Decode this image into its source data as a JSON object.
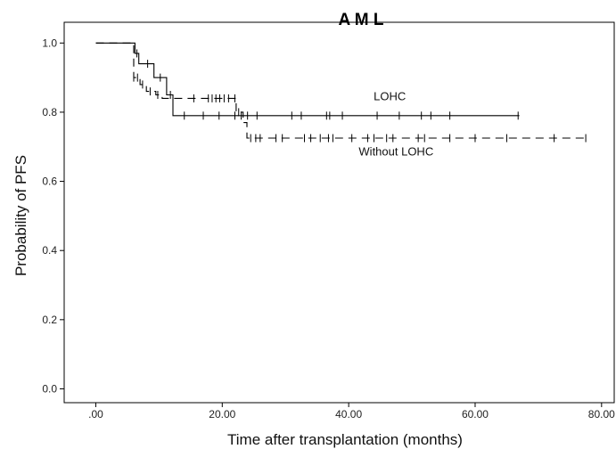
{
  "chart_data": {
    "type": "line",
    "title": "A M L",
    "xlabel": "Time after transplantation (months)",
    "ylabel": "Probability of PFS",
    "xlim": [
      -5,
      82
    ],
    "ylim": [
      -0.04,
      1.06
    ],
    "x_ticks": [
      {
        "value": 0,
        "label": ".00"
      },
      {
        "value": 20,
        "label": "20.00"
      },
      {
        "value": 40,
        "label": "40.00"
      },
      {
        "value": 60,
        "label": "60.00"
      },
      {
        "value": 80,
        "label": "80.00"
      }
    ],
    "y_ticks": [
      {
        "value": 0,
        "label": "0.0"
      },
      {
        "value": 0.2,
        "label": "0.2"
      },
      {
        "value": 0.4,
        "label": "0.4"
      },
      {
        "value": 0.6,
        "label": "0.6"
      },
      {
        "value": 0.8,
        "label": "0.8"
      },
      {
        "value": 1.0,
        "label": "1.0"
      }
    ],
    "grid": false,
    "series": [
      {
        "name": "LOHC",
        "style": "solid",
        "color": "#000000",
        "steps": [
          [
            0,
            1.0
          ],
          [
            6.2,
            0.97
          ],
          [
            6.8,
            0.94
          ],
          [
            9.2,
            0.9
          ],
          [
            11.2,
            0.85
          ],
          [
            12.2,
            0.79
          ],
          [
            67,
            0.79
          ]
        ],
        "censored": [
          6.5,
          8.2,
          10.2,
          11.8,
          14,
          17,
          19.5,
          22,
          23,
          24,
          25.5,
          31,
          32.5,
          36.5,
          37,
          39,
          44.5,
          48,
          51.5,
          53,
          56,
          66.8
        ]
      },
      {
        "name": "Without LOHC",
        "style": "dashed",
        "color": "#000000",
        "steps": [
          [
            0,
            1.0
          ],
          [
            6.0,
            0.9
          ],
          [
            7.0,
            0.88
          ],
          [
            8.0,
            0.86
          ],
          [
            9.5,
            0.85
          ],
          [
            10.5,
            0.84
          ],
          [
            22.2,
            0.8
          ],
          [
            23.3,
            0.77
          ],
          [
            23.9,
            0.725
          ],
          [
            77.5,
            0.725
          ]
        ],
        "censored": [
          6.0,
          6.6,
          7.4,
          8.6,
          9.8,
          15.5,
          17.8,
          18.4,
          19,
          19.6,
          20.3,
          21,
          22,
          22.6,
          24.5,
          25.3,
          26,
          28.5,
          29.5,
          33,
          34,
          35.5,
          36.8,
          37.5,
          40.5,
          43,
          44,
          46,
          47,
          51,
          52,
          56,
          60,
          65,
          72.5,
          77.5
        ]
      }
    ],
    "annotations": [
      {
        "text": "LOHC",
        "x": 46.5,
        "y": 0.835
      },
      {
        "text": "Without LOHC",
        "x": 47.5,
        "y": 0.675
      }
    ]
  }
}
